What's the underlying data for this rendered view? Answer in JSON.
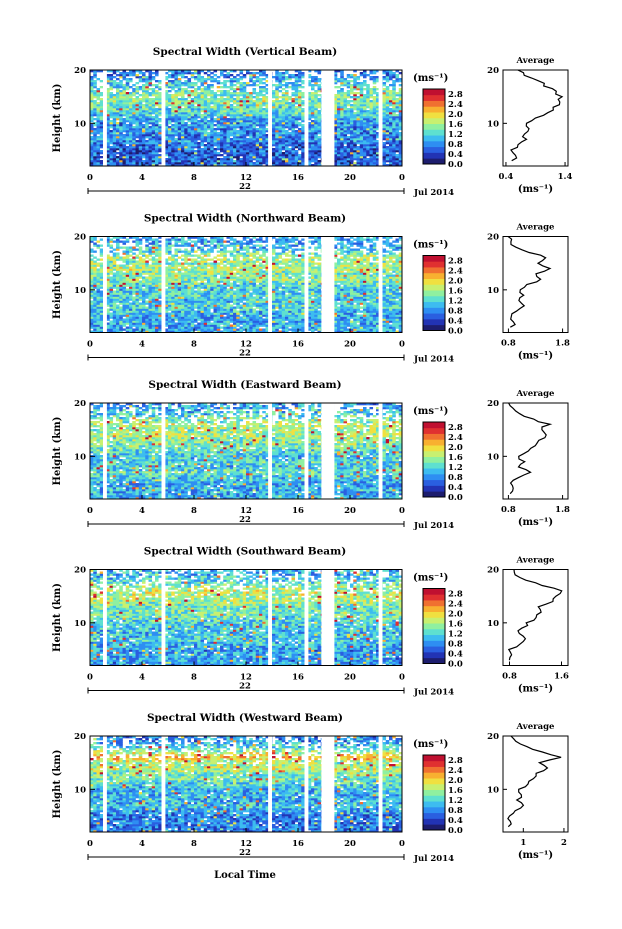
{
  "figure": {
    "bottom_label": "Local Time",
    "date_label": "Jul 2014",
    "day_label": "22",
    "ylabel": "Height (km)",
    "cbar_unit": "(ms⁻¹)",
    "avg_title": "Average",
    "avg_xlabel": "(ms⁻¹)",
    "colormap": [
      "#1d1d6e",
      "#2233b4",
      "#2a5fe0",
      "#2e8ef2",
      "#3dbcf0",
      "#5ee0d0",
      "#8ff0a0",
      "#c8f070",
      "#f0e040",
      "#f8b030",
      "#f07030",
      "#e03030",
      "#c01030"
    ],
    "gap_color": "#ffffff"
  },
  "chart_data": [
    {
      "type": "heatmap",
      "title": "Spectral Width (Vertical Beam)",
      "xlabel": "Local Time",
      "ylabel": "Height (km)",
      "xticks": [
        "0",
        "4",
        "8",
        "12",
        "16",
        "20",
        "0"
      ],
      "yticks": [
        "10",
        "20"
      ],
      "xlim": [
        0,
        24
      ],
      "ylim": [
        2,
        20
      ],
      "colorbar": {
        "ticks": [
          "0.0",
          "0.4",
          "0.8",
          "1.2",
          "1.6",
          "2.0",
          "2.4",
          "2.8"
        ],
        "range": [
          0,
          3.0
        ]
      },
      "data_gaps_hours": [
        [
          1.0,
          1.3
        ],
        [
          5.5,
          5.8
        ],
        [
          13.7,
          14.0
        ],
        [
          16.5,
          16.8
        ],
        [
          17.8,
          18.8
        ],
        [
          22.2,
          22.5
        ]
      ],
      "average_profile": {
        "xticks": [
          "0.4",
          "1.4"
        ],
        "xlim": [
          0.35,
          1.45
        ],
        "heights": [
          3,
          4,
          5,
          6,
          7,
          8,
          9,
          10,
          11,
          12,
          13,
          14,
          15,
          16,
          17,
          18,
          19,
          20
        ],
        "values": [
          0.5,
          0.55,
          0.5,
          0.6,
          0.75,
          0.7,
          0.8,
          0.75,
          0.9,
          1.1,
          1.2,
          1.3,
          1.35,
          1.25,
          1.05,
          0.95,
          0.7,
          0.6
        ]
      }
    },
    {
      "type": "heatmap",
      "title": "Spectral Width (Northward Beam)",
      "xlabel": "Local Time",
      "ylabel": "Height (km)",
      "xticks": [
        "0",
        "4",
        "8",
        "12",
        "16",
        "20",
        "0"
      ],
      "yticks": [
        "10",
        "20"
      ],
      "xlim": [
        0,
        24
      ],
      "ylim": [
        2,
        20
      ],
      "colorbar": {
        "ticks": [
          "0.0",
          "0.4",
          "0.8",
          "1.2",
          "1.6",
          "2.0",
          "2.4",
          "2.8"
        ],
        "range": [
          0,
          3.0
        ]
      },
      "data_gaps_hours": [
        [
          1.0,
          1.3
        ],
        [
          5.5,
          5.8
        ],
        [
          13.7,
          14.0
        ],
        [
          16.5,
          16.8
        ],
        [
          17.8,
          18.8
        ],
        [
          22.2,
          22.5
        ]
      ],
      "average_profile": {
        "xticks": [
          "0.8",
          "1.8"
        ],
        "xlim": [
          0.7,
          1.9
        ],
        "heights": [
          3,
          4,
          5,
          6,
          7,
          8,
          9,
          10,
          11,
          12,
          13,
          14,
          15,
          16,
          17,
          18,
          19,
          20
        ],
        "values": [
          0.85,
          0.9,
          0.85,
          0.95,
          1.1,
          1.0,
          1.1,
          1.0,
          1.15,
          1.4,
          1.3,
          1.55,
          1.35,
          1.5,
          1.2,
          0.95,
          0.85,
          0.8
        ]
      }
    },
    {
      "type": "heatmap",
      "title": "Spectral Width (Eastward Beam)",
      "xlabel": "Local Time",
      "ylabel": "Height (km)",
      "xticks": [
        "0",
        "4",
        "8",
        "12",
        "16",
        "20",
        "0"
      ],
      "yticks": [
        "10",
        "20"
      ],
      "xlim": [
        0,
        24
      ],
      "ylim": [
        2,
        20
      ],
      "colorbar": {
        "ticks": [
          "0.0",
          "0.4",
          "0.8",
          "1.2",
          "1.6",
          "2.0",
          "2.4",
          "2.8"
        ],
        "range": [
          0,
          3.0
        ]
      },
      "data_gaps_hours": [
        [
          1.0,
          1.3
        ],
        [
          5.5,
          5.8
        ],
        [
          13.7,
          14.0
        ],
        [
          16.5,
          16.8
        ],
        [
          17.8,
          18.8
        ],
        [
          22.2,
          22.5
        ]
      ],
      "average_profile": {
        "xticks": [
          "0.8",
          "1.8"
        ],
        "xlim": [
          0.7,
          1.9
        ],
        "heights": [
          3,
          4,
          5,
          6,
          7,
          8,
          9,
          10,
          11,
          12,
          13,
          14,
          15,
          16,
          17,
          18,
          19,
          20
        ],
        "values": [
          0.85,
          0.9,
          0.85,
          1.0,
          1.2,
          1.0,
          1.1,
          1.0,
          1.15,
          1.3,
          1.35,
          1.5,
          1.4,
          1.55,
          1.25,
          1.0,
          0.9,
          0.8
        ]
      }
    },
    {
      "type": "heatmap",
      "title": "Spectral Width (Southward Beam)",
      "xlabel": "Local Time",
      "ylabel": "Height (km)",
      "xticks": [
        "0",
        "4",
        "8",
        "12",
        "16",
        "20",
        "0"
      ],
      "yticks": [
        "10",
        "20"
      ],
      "xlim": [
        0,
        24
      ],
      "ylim": [
        2,
        20
      ],
      "colorbar": {
        "ticks": [
          "0.0",
          "0.4",
          "0.8",
          "1.2",
          "1.6",
          "2.0",
          "2.4",
          "2.8"
        ],
        "range": [
          0,
          3.0
        ]
      },
      "data_gaps_hours": [
        [
          1.0,
          1.3
        ],
        [
          5.5,
          5.8
        ],
        [
          13.7,
          14.0
        ],
        [
          16.5,
          16.8
        ],
        [
          17.8,
          18.8
        ],
        [
          22.2,
          22.5
        ]
      ],
      "average_profile": {
        "xticks": [
          "0.8",
          "1.6"
        ],
        "xlim": [
          0.7,
          1.7
        ],
        "heights": [
          3,
          4,
          5,
          6,
          7,
          8,
          9,
          10,
          11,
          12,
          13,
          14,
          15,
          16,
          17,
          18,
          19,
          20
        ],
        "values": [
          0.8,
          0.85,
          0.8,
          0.95,
          1.05,
          0.95,
          1.0,
          1.05,
          1.2,
          1.3,
          1.25,
          1.45,
          1.5,
          1.6,
          1.3,
          1.05,
          0.9,
          0.85
        ]
      }
    },
    {
      "type": "heatmap",
      "title": "Spectral Width (Westward Beam)",
      "xlabel": "Local Time",
      "ylabel": "Height (km)",
      "xticks": [
        "0",
        "4",
        "8",
        "12",
        "16",
        "20",
        "0"
      ],
      "yticks": [
        "10",
        "20"
      ],
      "xlim": [
        0,
        24
      ],
      "ylim": [
        2,
        20
      ],
      "colorbar": {
        "ticks": [
          "0.0",
          "0.4",
          "0.8",
          "1.2",
          "1.6",
          "2.0",
          "2.4",
          "2.8"
        ],
        "range": [
          0,
          3.0
        ]
      },
      "data_gaps_hours": [
        [
          1.0,
          1.3
        ],
        [
          5.5,
          5.8
        ],
        [
          13.7,
          14.0
        ],
        [
          16.5,
          16.8
        ],
        [
          17.8,
          18.8
        ],
        [
          22.2,
          22.5
        ]
      ],
      "average_profile": {
        "xticks": [
          "1",
          "2"
        ],
        "xlim": [
          0.5,
          2.1
        ],
        "heights": [
          3,
          4,
          5,
          6,
          7,
          8,
          9,
          10,
          11,
          12,
          13,
          14,
          15,
          16,
          17,
          18,
          19,
          20
        ],
        "values": [
          0.65,
          0.7,
          0.65,
          0.8,
          1.0,
          0.85,
          0.95,
          0.9,
          1.1,
          1.25,
          1.3,
          1.6,
          1.4,
          1.95,
          1.45,
          1.1,
          0.8,
          0.7
        ]
      }
    }
  ]
}
